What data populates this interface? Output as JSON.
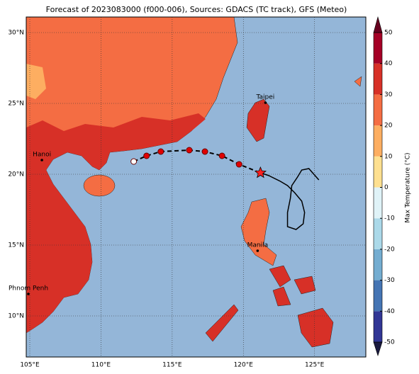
{
  "chart_data": {
    "type": "map",
    "title": "Forecast of 2023083000 (f000-006), Sources: GDACS (TC track), GFS (Meteo)",
    "xlim": [
      104.75,
      128.6
    ],
    "ylim": [
      7.1,
      31.1
    ],
    "xticks": [
      {
        "value": 105,
        "label": "105°E"
      },
      {
        "value": 110,
        "label": "110°E"
      },
      {
        "value": 115,
        "label": "115°E"
      },
      {
        "value": 120,
        "label": "120°E"
      },
      {
        "value": 125,
        "label": "125°E"
      }
    ],
    "yticks": [
      {
        "value": 10,
        "label": "10°N"
      },
      {
        "value": 15,
        "label": "15°N"
      },
      {
        "value": 20,
        "label": "20°N"
      },
      {
        "value": 25,
        "label": "25°N"
      },
      {
        "value": 30,
        "label": "30°N"
      }
    ],
    "grid": true,
    "cities": [
      {
        "name": "Hanoi",
        "lon": 105.85,
        "lat": 21.0
      },
      {
        "name": "Taipei",
        "lon": 121.55,
        "lat": 25.05
      },
      {
        "name": "Manila",
        "lon": 121.0,
        "lat": 14.6
      },
      {
        "name": "Phnom Penh",
        "lon": 104.9,
        "lat": 11.55
      }
    ],
    "forecast_track": {
      "color": "#e00000",
      "lon": [
        112.3,
        113.2,
        114.2,
        116.2,
        117.3,
        118.5,
        119.7
      ],
      "lat": [
        20.9,
        21.3,
        21.6,
        21.7,
        21.6,
        21.3,
        20.7
      ]
    },
    "current_position": {
      "color": "#ff2020",
      "lon": 121.2,
      "lat": 20.1
    },
    "past_track": {
      "color": "#000000",
      "lon": [
        121.2,
        121.8,
        122.6,
        123.1,
        123.6,
        124.1,
        124.3,
        124.2,
        123.7,
        123.1,
        123.1,
        123.3,
        123.4,
        123.8,
        124.1,
        124.6,
        125.3
      ],
      "lat": [
        20.1,
        19.9,
        19.5,
        19.2,
        18.7,
        18.1,
        17.3,
        16.5,
        16.1,
        16.3,
        17.3,
        18.3,
        19.2,
        19.8,
        20.3,
        20.4,
        19.6
      ]
    },
    "colorbar": {
      "label": "Max Temperature (°C)",
      "ticks": [
        -50,
        -40,
        -30,
        -20,
        -10,
        0,
        10,
        20,
        30,
        40,
        50
      ],
      "colors": [
        "#313695",
        "#4575b4",
        "#74add1",
        "#abd9e9",
        "#e0f3f8",
        "#fee090",
        "#fdae61",
        "#f46d43",
        "#d73027",
        "#a50026"
      ]
    }
  }
}
